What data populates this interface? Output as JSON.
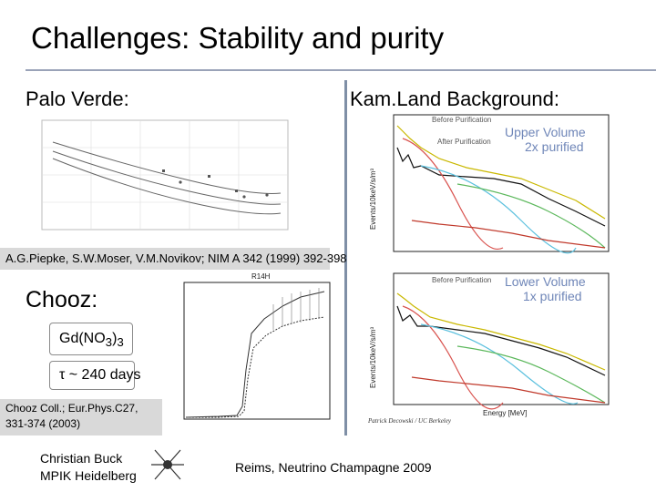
{
  "title": "Challenges: Stability and purity",
  "palo_verde": {
    "label": "Palo Verde:",
    "citation": "A.G.Piepke, S.W.Moser, V.M.Novikov; NIM A 342 (1999) 392-398"
  },
  "kamland": {
    "label": "Kam.Land Background:",
    "upper_panel": {
      "title_line1": "Upper Volume",
      "title_line2": "2x purified",
      "before_label": "Before Purification",
      "after_label": "After Purification",
      "ylabel": "Events/10keV/s/m³"
    },
    "lower_panel": {
      "title_line1": "Lower Volume",
      "title_line2": "1x purified",
      "before_label": "Before Purification",
      "ylabel": "Events/10keV/s/m³",
      "xlabel": "Energy [MeV]"
    },
    "credit": "Patrick Decowski / UC Berkeley"
  },
  "chooz": {
    "label": "Chooz:",
    "formula_main": "Gd(NO",
    "formula_sub": "3",
    "formula_close": ")",
    "formula_sub2": "3",
    "lifetime": "τ ~ 240 days",
    "citation": "Chooz Coll.; Eur.Phys.C27, 331-374 (2003)",
    "plot_title": "R14H"
  },
  "footer": {
    "author_line1": "Christian Buck",
    "author_line2": "MPIK Heidelberg",
    "event": "Reims, Neutrino Champagne 2009"
  },
  "colors": {
    "rule": "#9aa3b8",
    "divider": "#7f8fa6",
    "citation_bg": "#d9d9d9",
    "volume_title": "#6f86b8"
  }
}
